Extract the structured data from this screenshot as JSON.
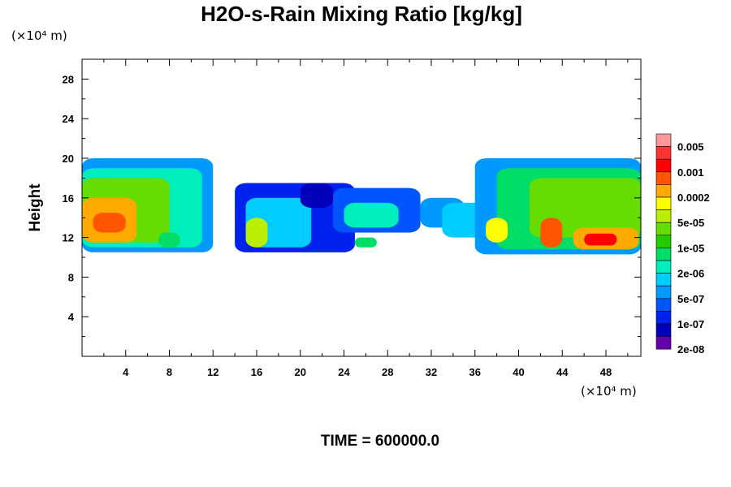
{
  "chart_data": {
    "type": "heatmap",
    "title": "H2O-s-Rain Mixing Ratio [kg/kg]",
    "x_unit": "(×10⁴ m)",
    "y_unit": "(×10⁴ m)",
    "ylabel": "Height",
    "xlim": [
      0,
      51.2
    ],
    "ylim": [
      0,
      30
    ],
    "x_ticks": [
      "4",
      "8",
      "12",
      "16",
      "20",
      "24",
      "28",
      "32",
      "36",
      "40",
      "44",
      "48"
    ],
    "y_ticks": [
      "4",
      "8",
      "12",
      "16",
      "20",
      "24",
      "28"
    ],
    "colorbar": {
      "labels": [
        "0.005",
        "0.001",
        "0.0002",
        "5e-05",
        "1e-05",
        "2e-06",
        "5e-07",
        "1e-07",
        "2e-08"
      ],
      "colors": [
        "#ff9999",
        "#ff3333",
        "#ff0000",
        "#ff5500",
        "#ffaa00",
        "#ffff00",
        "#bbee00",
        "#66dd00",
        "#22cc00",
        "#00dd66",
        "#00eebb",
        "#00ccff",
        "#0099ff",
        "#0055ff",
        "#0022ee",
        "#0000bb",
        "#6600aa"
      ]
    },
    "regions": [
      {
        "x0": 0,
        "x1": 12,
        "y0": 10.5,
        "y1": 20,
        "level": 12
      },
      {
        "x0": 0,
        "x1": 11,
        "y0": 11,
        "y1": 19,
        "level": 10
      },
      {
        "x0": 0,
        "x1": 8,
        "y0": 11.5,
        "y1": 18,
        "level": 7
      },
      {
        "x0": 0,
        "x1": 5,
        "y0": 11.5,
        "y1": 16,
        "level": 4
      },
      {
        "x0": 1,
        "x1": 4,
        "y0": 12.5,
        "y1": 14.5,
        "level": 3
      },
      {
        "x0": 7,
        "x1": 9,
        "y0": 11,
        "y1": 12.5,
        "level": 9
      },
      {
        "x0": 14,
        "x1": 25,
        "y0": 10.5,
        "y1": 17.5,
        "level": 14
      },
      {
        "x0": 15,
        "x1": 21,
        "y0": 11,
        "y1": 16,
        "level": 11
      },
      {
        "x0": 15,
        "x1": 17,
        "y0": 11,
        "y1": 14,
        "level": 6
      },
      {
        "x0": 20,
        "x1": 23,
        "y0": 15,
        "y1": 17.5,
        "level": 15
      },
      {
        "x0": 23,
        "x1": 31,
        "y0": 12.5,
        "y1": 17,
        "level": 13
      },
      {
        "x0": 24,
        "x1": 29,
        "y0": 13,
        "y1": 15.5,
        "level": 10
      },
      {
        "x0": 25,
        "x1": 27,
        "y0": 11,
        "y1": 12,
        "level": 9
      },
      {
        "x0": 31,
        "x1": 35,
        "y0": 13,
        "y1": 16,
        "level": 12
      },
      {
        "x0": 33,
        "x1": 37,
        "y0": 12,
        "y1": 15.5,
        "level": 11
      },
      {
        "x0": 36,
        "x1": 51.2,
        "y0": 10.3,
        "y1": 20,
        "level": 12
      },
      {
        "x0": 38,
        "x1": 51.2,
        "y0": 10.8,
        "y1": 19,
        "level": 9
      },
      {
        "x0": 41,
        "x1": 51.2,
        "y0": 12,
        "y1": 18,
        "level": 7
      },
      {
        "x0": 37,
        "x1": 39,
        "y0": 11.5,
        "y1": 14,
        "level": 5
      },
      {
        "x0": 42,
        "x1": 44,
        "y0": 11,
        "y1": 14,
        "level": 3
      },
      {
        "x0": 45,
        "x1": 51,
        "y0": 10.8,
        "y1": 13,
        "level": 4
      },
      {
        "x0": 46,
        "x1": 49,
        "y0": 11.2,
        "y1": 12.4,
        "level": 2
      }
    ]
  },
  "footer": {
    "time_label": "TIME = 600000.0"
  }
}
